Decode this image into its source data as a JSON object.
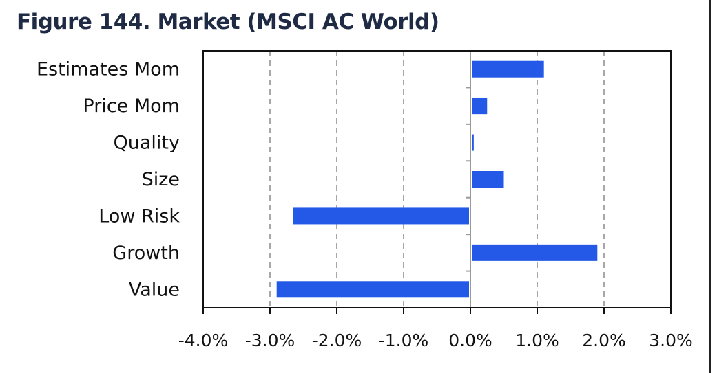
{
  "figure": {
    "title": "Figure 144. Market (MSCI AC World)"
  },
  "colors": {
    "bar": "#2458e6",
    "grid": "#a8a8a8",
    "frame": "#111111",
    "zero_line": "#9a9a9a"
  },
  "chart_data": {
    "type": "bar",
    "orientation": "horizontal",
    "title": "Figure 144. Market (MSCI AC World)",
    "categories": [
      "Estimates Mom",
      "Price Mom",
      "Quality",
      "Size",
      "Low Risk",
      "Growth",
      "Value"
    ],
    "values": [
      1.1,
      0.25,
      0.05,
      0.5,
      -2.65,
      1.9,
      -2.9
    ],
    "xlim": [
      -4.0,
      3.0
    ],
    "x_ticks": [
      -4.0,
      -3.0,
      -2.0,
      -1.0,
      0.0,
      1.0,
      2.0,
      3.0
    ],
    "x_tick_labels": [
      "-4.0%",
      "-3.0%",
      "-2.0%",
      "-1.0%",
      "0.0%",
      "1.0%",
      "2.0%",
      "3.0%"
    ],
    "grid": "vertical-dashed",
    "legend": "none"
  }
}
